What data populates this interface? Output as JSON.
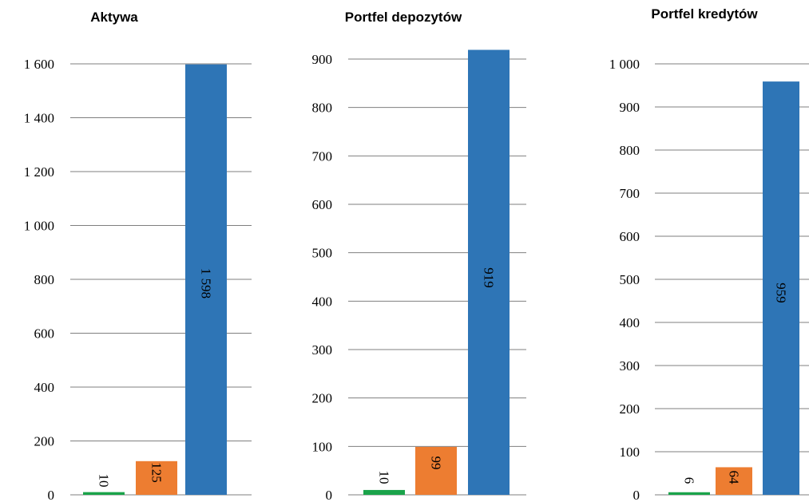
{
  "chart_data": [
    {
      "type": "bar",
      "title": "Aktywa",
      "categories": [
        "",
        "",
        ""
      ],
      "values": [
        10,
        125,
        1598
      ],
      "data_labels": [
        "10",
        "125",
        "1 598"
      ],
      "colors": [
        "#1aa34a",
        "#ed7d31",
        "#2e75b6"
      ],
      "ylim": [
        0,
        1600
      ],
      "yticks": [
        0,
        200,
        400,
        600,
        800,
        1000,
        1200,
        1400,
        1600
      ],
      "ytick_labels": [
        "0",
        "200",
        "400",
        "600",
        "800",
        "1 000",
        "1 200",
        "1 400",
        "1 600"
      ],
      "grid": true,
      "xlabel": "",
      "ylabel": ""
    },
    {
      "type": "bar",
      "title": "Portfel depozytów",
      "categories": [
        "",
        "",
        ""
      ],
      "values": [
        10,
        99,
        919
      ],
      "data_labels": [
        "10",
        "99",
        "919"
      ],
      "colors": [
        "#1aa34a",
        "#ed7d31",
        "#2e75b6"
      ],
      "ylim": [
        0,
        900
      ],
      "yticks": [
        0,
        100,
        200,
        300,
        400,
        500,
        600,
        700,
        800,
        900
      ],
      "ytick_labels": [
        "0",
        "100",
        "200",
        "300",
        "400",
        "500",
        "600",
        "700",
        "800",
        "900"
      ],
      "grid": true,
      "xlabel": "",
      "ylabel": ""
    },
    {
      "type": "bar",
      "title": "Portfel kredytów",
      "categories": [
        "",
        "",
        ""
      ],
      "values": [
        6,
        64,
        959
      ],
      "data_labels": [
        "6",
        "64",
        "959"
      ],
      "colors": [
        "#1aa34a",
        "#ed7d31",
        "#2e75b6"
      ],
      "ylim": [
        0,
        1000
      ],
      "yticks": [
        0,
        100,
        200,
        300,
        400,
        500,
        600,
        700,
        800,
        900,
        1000
      ],
      "ytick_labels": [
        "0",
        "100",
        "200",
        "300",
        "400",
        "500",
        "600",
        "700",
        "800",
        "900",
        "1 000"
      ],
      "grid": true,
      "xlabel": "",
      "ylabel": ""
    }
  ]
}
